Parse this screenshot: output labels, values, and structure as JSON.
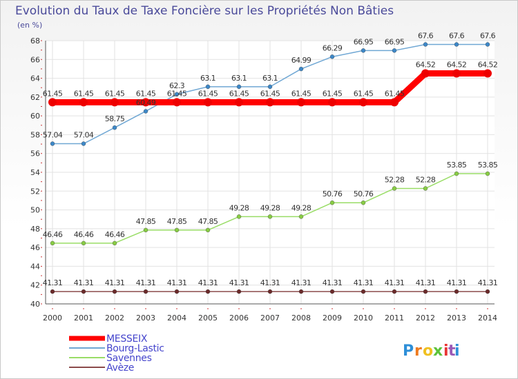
{
  "chart_data": {
    "type": "line",
    "title": "Evolution du Taux de Taxe Foncière sur les Propriétés Non Bâties",
    "subtitle": "(en %)",
    "xlabel": "",
    "ylabel": "(en %)",
    "ylim": [
      40,
      68
    ],
    "yticks": [
      40,
      42,
      44,
      46,
      48,
      50,
      52,
      54,
      56,
      58,
      60,
      62,
      64,
      66,
      68
    ],
    "x": [
      "2000",
      "2001",
      "2002",
      "2003",
      "2004",
      "2005",
      "2006",
      "2007",
      "2008",
      "2009",
      "2010",
      "2011",
      "2012",
      "2013",
      "2014"
    ],
    "grid": true,
    "legend_position": "bottom-left",
    "series": [
      {
        "name": "MESSEIX",
        "color": "#ff0000",
        "values": [
          61.45,
          61.45,
          61.45,
          61.45,
          61.45,
          61.45,
          61.45,
          61.45,
          61.45,
          61.45,
          61.45,
          61.45,
          64.52,
          64.52,
          64.52
        ],
        "labels": [
          "61.45",
          "61.45",
          "61.45",
          "61.45",
          "61.45",
          "61.45",
          "61.45",
          "61.45",
          "61.45",
          "61.45",
          "61.45",
          "61.45",
          "64.52",
          "64.52",
          "64.52"
        ]
      },
      {
        "name": "Bourg-Lastic",
        "color": "#6fa7d4",
        "marker": "#3d88c8",
        "values": [
          57.04,
          57.04,
          58.75,
          60.49,
          62.3,
          63.1,
          63.1,
          63.1,
          64.99,
          66.29,
          66.95,
          66.95,
          67.6,
          67.6,
          67.6
        ],
        "labels": [
          "57.04",
          "57.04",
          "58.75",
          "60.49",
          "62.3",
          "63.1",
          "63.1",
          "63.1",
          "64.99",
          "66.29",
          "66.95",
          "66.95",
          "67.6",
          "67.6",
          "67.6"
        ]
      },
      {
        "name": "Savennes",
        "color": "#99dd66",
        "marker": "#88cc44",
        "values": [
          46.46,
          46.46,
          46.46,
          47.85,
          47.85,
          47.85,
          49.28,
          49.28,
          49.28,
          50.76,
          50.76,
          52.28,
          52.28,
          53.85,
          53.85
        ],
        "labels": [
          "46.46",
          "46.46",
          "46.46",
          "47.85",
          "47.85",
          "47.85",
          "49.28",
          "49.28",
          "49.28",
          "50.76",
          "50.76",
          "52.28",
          "52.28",
          "53.85",
          "53.85"
        ]
      },
      {
        "name": "Avèze",
        "color": "#8b4a4a",
        "marker": "#6b2a2a",
        "values": [
          41.31,
          41.31,
          41.31,
          41.31,
          41.31,
          41.31,
          41.31,
          41.31,
          41.31,
          41.31,
          41.31,
          41.31,
          41.31,
          41.31,
          41.31
        ],
        "labels": [
          "41.31",
          "41.31",
          "41.31",
          "41.31",
          "41.31",
          "41.31",
          "41.31",
          "41.31",
          "41.31",
          "41.31",
          "41.31",
          "41.31",
          "41.31",
          "41.31",
          "41.31"
        ]
      }
    ]
  },
  "logo": {
    "text": "Proxiti",
    "colors": [
      "#2e8fd8",
      "#ee7a1e",
      "#f0c020",
      "#5cc23a",
      "#e83434",
      "#9b59b6"
    ]
  }
}
